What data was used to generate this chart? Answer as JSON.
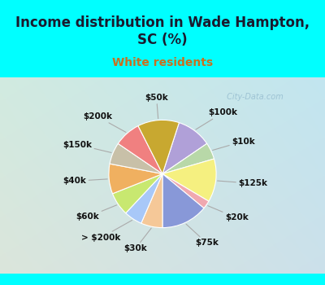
{
  "title": "Income distribution in Wade Hampton,\nSC (%)",
  "subtitle": "White residents",
  "title_color": "#1a1a2e",
  "subtitle_color": "#c87020",
  "background_outer": "#00FFFF",
  "background_inner_tl": "#d8ede0",
  "background_inner_br": "#c8e8f8",
  "watermark": " City-Data.com",
  "slices": [
    {
      "label": "$100k",
      "value": 10.5,
      "color": "#b0a0d8"
    },
    {
      "label": "$10k",
      "value": 5.0,
      "color": "#b8d8a8"
    },
    {
      "label": "$125k",
      "value": 13.0,
      "color": "#f5f080"
    },
    {
      "label": "$20k",
      "value": 2.5,
      "color": "#f0a8b0"
    },
    {
      "label": "$75k",
      "value": 14.0,
      "color": "#8898d8"
    },
    {
      "label": "$30k",
      "value": 6.5,
      "color": "#f5c898"
    },
    {
      "label": "> $200k",
      "value": 5.5,
      "color": "#a8c8f8"
    },
    {
      "label": "$60k",
      "value": 7.0,
      "color": "#c8e870"
    },
    {
      "label": "$40k",
      "value": 9.0,
      "color": "#f0b060"
    },
    {
      "label": "$150k",
      "value": 6.5,
      "color": "#c8c0a8"
    },
    {
      "label": "$200k",
      "value": 8.0,
      "color": "#f08080"
    },
    {
      "label": "$50k",
      "value": 12.5,
      "color": "#c8a830"
    }
  ],
  "figsize": [
    4.0,
    3.5
  ],
  "dpi": 100,
  "title_fontsize": 12,
  "subtitle_fontsize": 10
}
